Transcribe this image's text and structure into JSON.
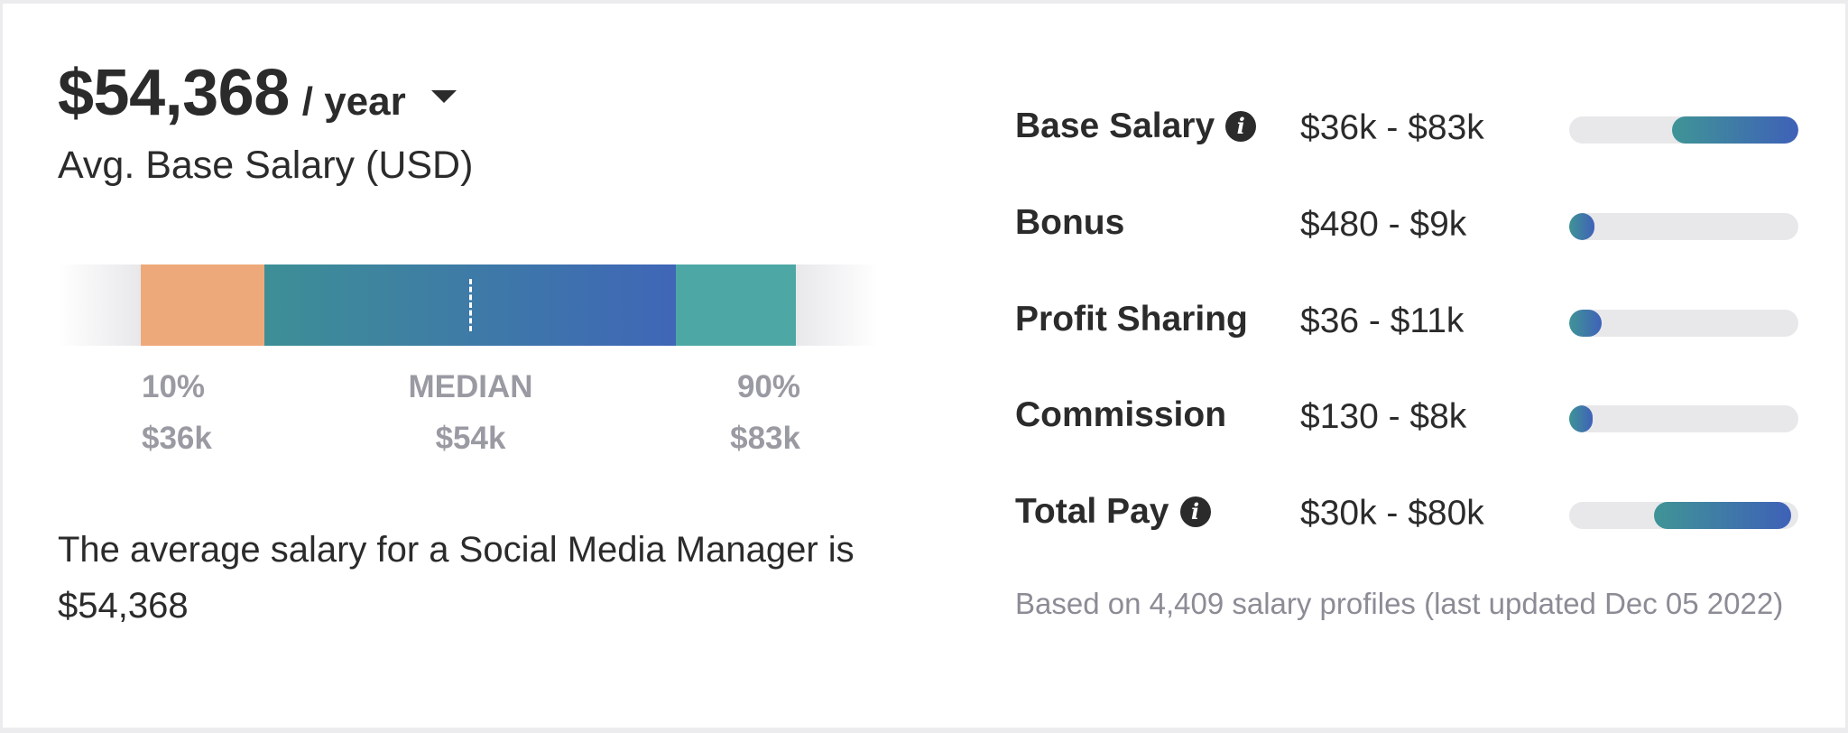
{
  "header": {
    "amount": "$54,368",
    "period": "/ year",
    "subtitle": "Avg. Base Salary (USD)"
  },
  "distribution": {
    "low": {
      "label": "10%",
      "value": "$36k"
    },
    "median": {
      "label": "MEDIAN",
      "value": "$54k"
    },
    "high": {
      "label": "90%",
      "value": "$83k"
    },
    "colors": {
      "low": "#eea97a",
      "mid_start": "#3d8f96",
      "mid_end": "#3f66b7",
      "high": "#4da8a5"
    }
  },
  "summary": "The average salary for a Social Media Manager is $54,368",
  "pay_rows": [
    {
      "label": "Base Salary",
      "range": "$36k - $83k",
      "has_info": true,
      "fill_start": 0.45,
      "fill_end": 1.0
    },
    {
      "label": "Bonus",
      "range": "$480 - $9k",
      "has_info": false,
      "fill_start": 0.0,
      "fill_end": 0.11
    },
    {
      "label": "Profit Sharing",
      "range": "$36 - $11k",
      "has_info": false,
      "fill_start": 0.0,
      "fill_end": 0.14
    },
    {
      "label": "Commission",
      "range": "$130 - $8k",
      "has_info": false,
      "fill_start": 0.0,
      "fill_end": 0.1
    },
    {
      "label": "Total Pay",
      "range": "$30k - $80k",
      "has_info": true,
      "fill_start": 0.37,
      "fill_end": 0.97
    }
  ],
  "info_icon": {
    "glyph": "i",
    "name": "info-icon"
  },
  "footnote": "Based on 4,409 salary profiles (last updated Dec 05 2022)"
}
